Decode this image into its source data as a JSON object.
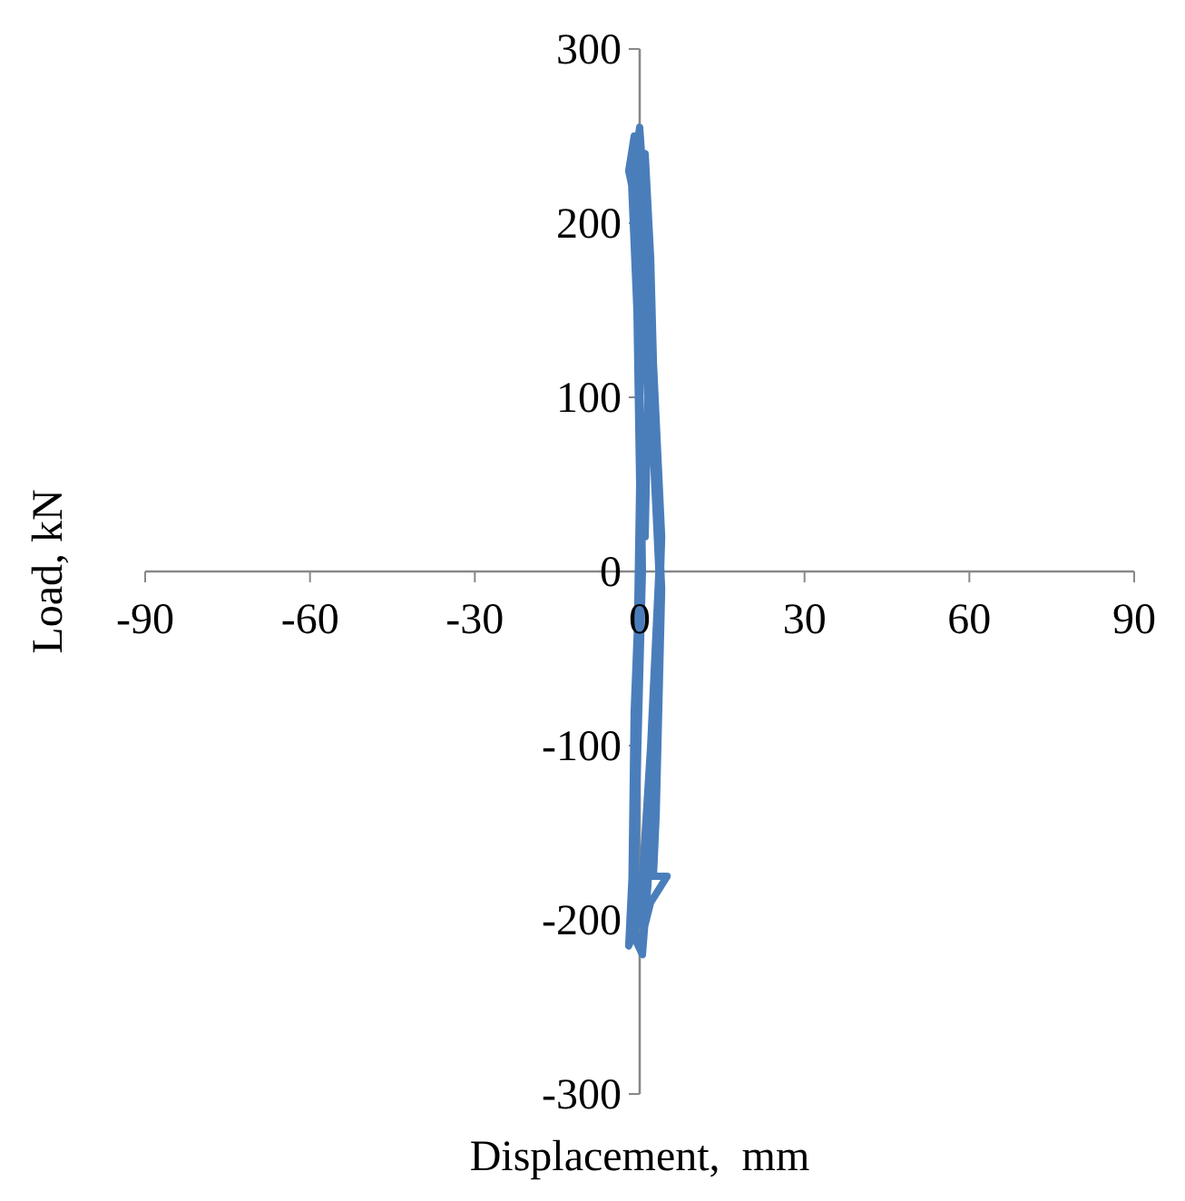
{
  "chart_data": {
    "type": "line",
    "xlabel": "Displacement,  mm",
    "ylabel": "Load, kN",
    "xlim": [
      -90,
      90
    ],
    "ylim": [
      -300,
      300
    ],
    "xticks": [
      -90,
      -60,
      -30,
      0,
      30,
      60,
      90
    ],
    "yticks": [
      -300,
      -200,
      -100,
      0,
      100,
      200,
      300
    ],
    "grid": false,
    "marker": "none",
    "line_style": "solid",
    "series": [
      {
        "color": "#4a7ebb",
        "x": [
          1,
          1.5,
          0,
          -2,
          -1,
          0.5,
          2,
          3.5,
          2,
          0,
          -2,
          -1,
          -0.5,
          0,
          -0.5,
          -1.5,
          0,
          1,
          2.5,
          4,
          3,
          1.5,
          0.5,
          -1,
          -0.5,
          0.5,
          0,
          -1,
          1,
          2,
          3,
          4,
          3,
          2.5,
          5,
          2,
          0,
          -1.5,
          -1,
          0
        ],
        "values": [
          20,
          100,
          200,
          230,
          250,
          200,
          100,
          0,
          -100,
          -200,
          -215,
          -150,
          -50,
          50,
          150,
          225,
          255,
          210,
          120,
          20,
          -80,
          -180,
          -220,
          -210,
          -120,
          0,
          120,
          220,
          240,
          180,
          60,
          -10,
          -140,
          -175,
          -175,
          -190,
          -215,
          -200,
          -80,
          0
        ]
      }
    ]
  }
}
